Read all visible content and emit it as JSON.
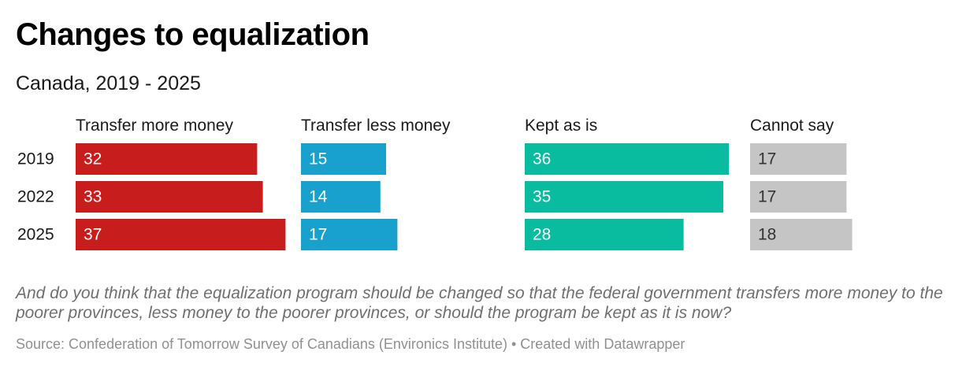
{
  "title": "Changes to equalization",
  "subtitle": "Canada, 2019 - 2025",
  "notes": "And do you think that the equalization program should be changed so that the federal government transfers more money to the poorer provinces, less money to the poorer provinces, or should the program be kept as it is now?",
  "source": "Source: Confederation of Tomorrow Survey of Canadians (Environics Institute) • Created with Datawrapper",
  "chart_data": {
    "type": "bar",
    "layout": "split-bars",
    "categories": [
      "2019",
      "2022",
      "2025"
    ],
    "series": [
      {
        "name": "Transfer more money",
        "values": [
          32,
          33,
          37
        ],
        "color": "#c71e1d"
      },
      {
        "name": "Transfer less money",
        "values": [
          15,
          14,
          17
        ],
        "color": "#18a1cd"
      },
      {
        "name": "Kept as is",
        "values": [
          36,
          35,
          28
        ],
        "color": "#09bb9f"
      },
      {
        "name": "Cannot say",
        "values": [
          17,
          17,
          18
        ],
        "color": "#c5c5c5"
      }
    ],
    "label_colors": [
      "#ffffff",
      "#ffffff",
      "#ffffff",
      "#333333"
    ],
    "xlim": [
      0,
      37
    ],
    "grid": false,
    "legend": "column headers"
  }
}
